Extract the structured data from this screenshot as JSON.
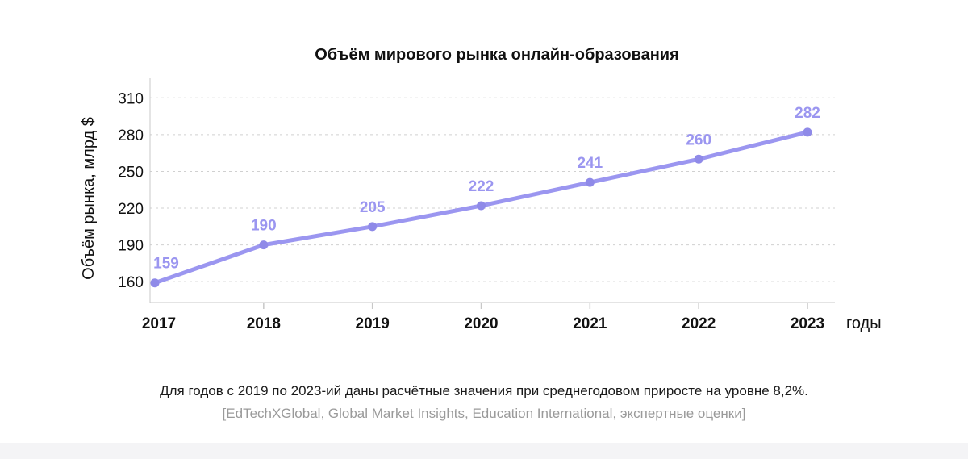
{
  "chart_data": {
    "type": "line",
    "title": "Объём мирового рынка онлайн-образования",
    "xlabel": "годы",
    "ylabel": "Объём рынка, млрд $",
    "categories": [
      "2017",
      "2018",
      "2019",
      "2020",
      "2021",
      "2022",
      "2023"
    ],
    "series": [
      {
        "values": [
          159,
          190,
          205,
          222,
          241,
          260,
          282
        ]
      }
    ],
    "data_labels": [
      "159",
      "190",
      "205",
      "222",
      "241",
      "260",
      "282"
    ],
    "y_ticks": [
      160,
      190,
      220,
      250,
      280,
      310
    ],
    "y_tick_labels": [
      "160",
      "190",
      "220",
      "250",
      "280",
      "310"
    ],
    "ylim": [
      143,
      326
    ],
    "grid": "horizontal dashed",
    "legend": "none",
    "colors": {
      "line": "#9b96f0",
      "marker": "#8f8ae8",
      "data_label": "#9b96f0",
      "grid": "#d0d0d0",
      "axis": "#c8c8c8",
      "text": "#111111"
    }
  },
  "notes": {
    "main": "Для годов с 2019 по 2023-ий даны расчётные значения при среднегодовом приросте на уровне 8,2%.",
    "source": "[EdTechXGlobal, Global Market Insights, Education International, экспертные оценки]"
  }
}
